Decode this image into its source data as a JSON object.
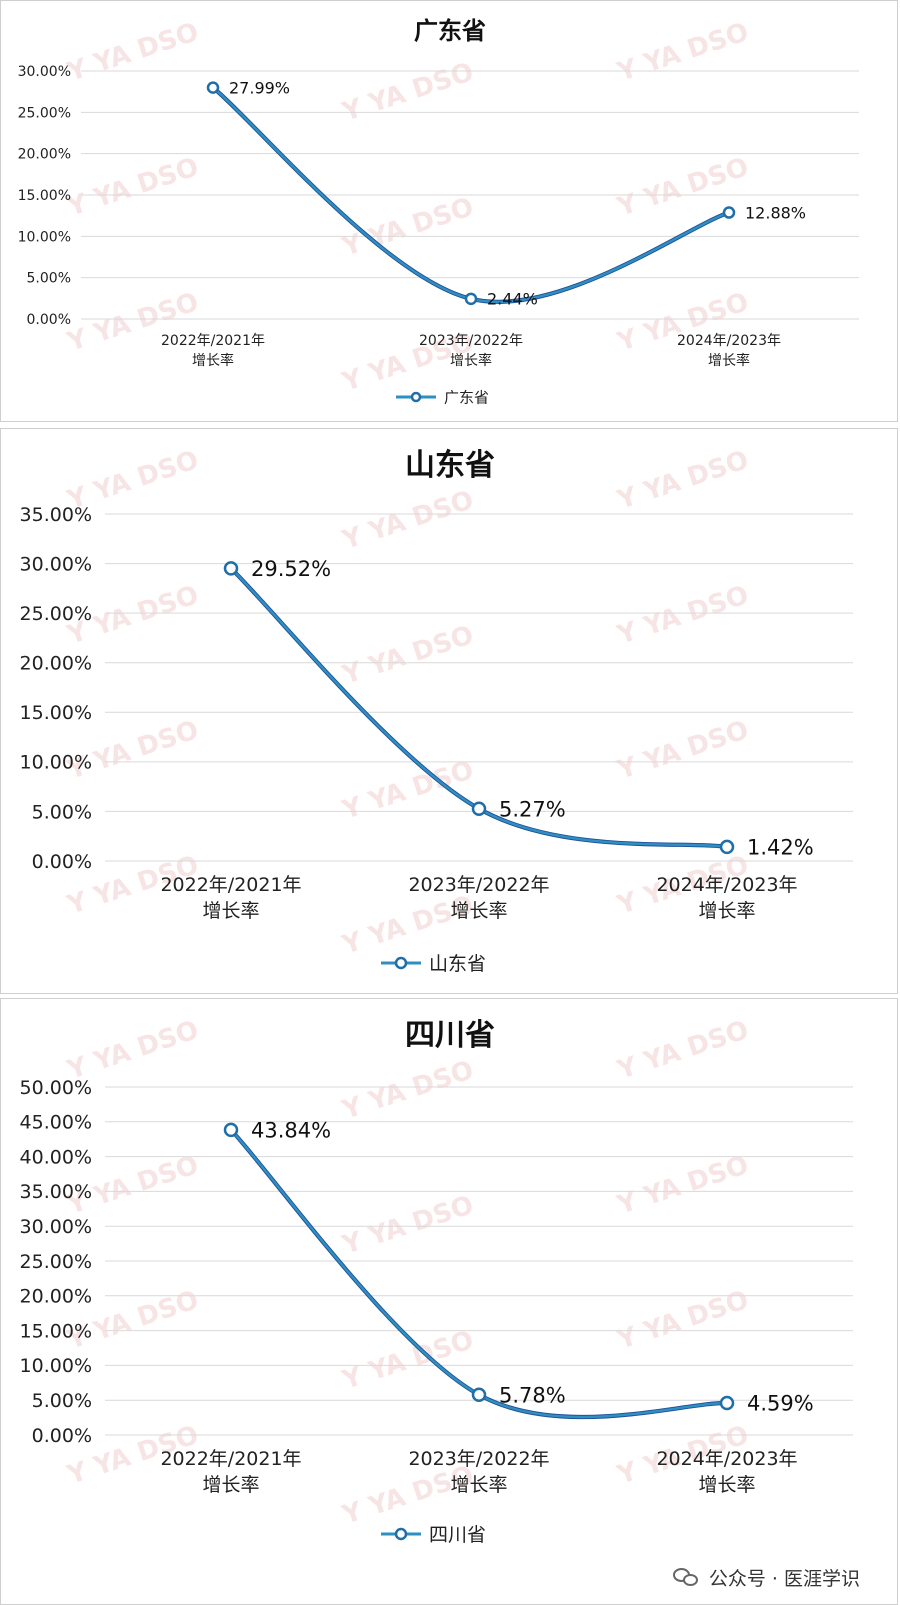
{
  "chart_data": [
    {
      "type": "line",
      "title": "广东省",
      "categories": [
        "2022年/2021年\n增长率",
        "2023年/2022年\n增长率",
        "2024年/2023年\n增长率"
      ],
      "series": [
        {
          "name": "广东省",
          "values": [
            27.99,
            2.44,
            12.88
          ],
          "labels": [
            "27.99%",
            "2.44%",
            "12.88%"
          ]
        }
      ],
      "ylim": [
        0,
        30
      ],
      "yticks": [
        "0.00%",
        "5.00%",
        "10.00%",
        "15.00%",
        "20.00%",
        "25.00%",
        "30.00%"
      ],
      "ystep": 5,
      "grid": true,
      "legend": "bottom",
      "line_color": "#2e8fc0"
    },
    {
      "type": "line",
      "title": "山东省",
      "categories": [
        "2022年/2021年\n增长率",
        "2023年/2022年\n增长率",
        "2024年/2023年\n增长率"
      ],
      "series": [
        {
          "name": "山东省",
          "values": [
            29.52,
            5.27,
            1.42
          ],
          "labels": [
            "29.52%",
            "5.27%",
            "1.42%"
          ]
        }
      ],
      "ylim": [
        0,
        35
      ],
      "yticks": [
        "0.00%",
        "5.00%",
        "10.00%",
        "15.00%",
        "20.00%",
        "25.00%",
        "30.00%",
        "35.00%"
      ],
      "ystep": 5,
      "grid": true,
      "legend": "bottom",
      "line_color": "#2e8fc0"
    },
    {
      "type": "line",
      "title": "四川省",
      "categories": [
        "2022年/2021年\n增长率",
        "2023年/2022年\n增长率",
        "2024年/2023年\n增长率"
      ],
      "series": [
        {
          "name": "四川省",
          "values": [
            43.84,
            5.78,
            4.59
          ],
          "labels": [
            "43.84%",
            "5.78%",
            "4.59%"
          ]
        }
      ],
      "ylim": [
        0,
        50
      ],
      "yticks": [
        "0.00%",
        "5.00%",
        "10.00%",
        "15.00%",
        "20.00%",
        "25.00%",
        "30.00%",
        "35.00%",
        "40.00%",
        "45.00%",
        "50.00%"
      ],
      "ystep": 5,
      "grid": true,
      "legend": "bottom",
      "line_color": "#2e8fc0"
    }
  ],
  "watermark": "Y  YA DSO",
  "footer": {
    "icon": "wechat-icon",
    "text": "公众号 · 医涯学识"
  }
}
